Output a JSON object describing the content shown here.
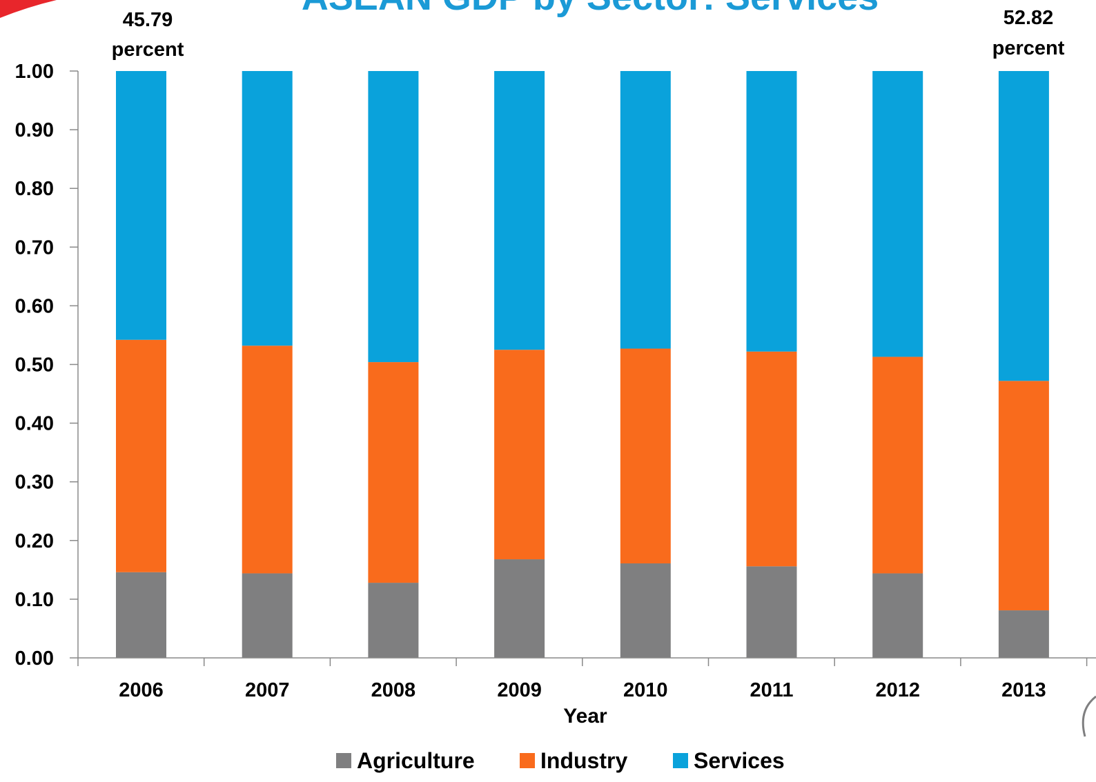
{
  "chart_data": {
    "type": "bar",
    "stacked": true,
    "title": "ASEAN GDP by Sector: Services",
    "xlabel": "Year",
    "ylabel": "",
    "ylim": [
      0,
      1.0
    ],
    "ytick_step": 0.1,
    "ytick_labels": [
      "0.00",
      "0.10",
      "0.20",
      "0.30",
      "0.40",
      "0.50",
      "0.60",
      "0.70",
      "0.80",
      "0.90",
      "1.00"
    ],
    "categories": [
      "2006",
      "2007",
      "2008",
      "2009",
      "2010",
      "2011",
      "2012",
      "2013"
    ],
    "series": [
      {
        "name": "Agriculture",
        "color": "#7f7f80",
        "values": [
          0.146,
          0.144,
          0.128,
          0.168,
          0.161,
          0.156,
          0.144,
          0.081
        ]
      },
      {
        "name": "Industry",
        "color": "#f96b1c",
        "values": [
          0.396,
          0.388,
          0.376,
          0.357,
          0.366,
          0.366,
          0.369,
          0.391
        ]
      },
      {
        "name": "Services",
        "color": "#0aa2db",
        "values": [
          0.458,
          0.468,
          0.496,
          0.475,
          0.473,
          0.478,
          0.487,
          0.528
        ]
      }
    ],
    "annotations": [
      {
        "category": "2006",
        "line1": "45.79",
        "line2": "percent"
      },
      {
        "category": "2013",
        "line1": "52.82",
        "line2": "percent"
      }
    ],
    "legend_position": "bottom",
    "grid": false
  },
  "decor": {
    "accent_color": "#e8262b"
  }
}
